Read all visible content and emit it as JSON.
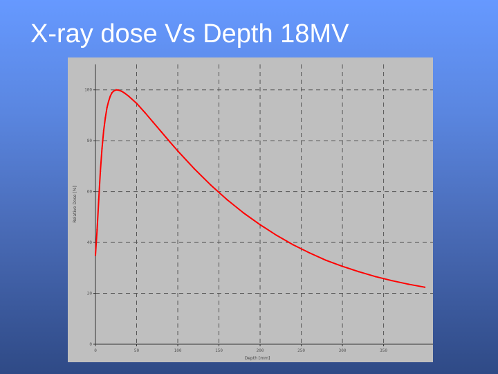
{
  "slide": {
    "title": "X-ray dose Vs Depth 18MV"
  },
  "colors": {
    "background_top": "#6699ff",
    "background_bottom": "#2f4a86",
    "plot_background": "#bfbfbf",
    "curve": "#ff0000",
    "grid": "#555555"
  },
  "chart_data": {
    "type": "line",
    "title": "",
    "xlabel": "Depth [mm]",
    "ylabel": "Relative Dose [%]",
    "xlim": [
      0,
      410
    ],
    "ylim": [
      0,
      110
    ],
    "xticks": [
      0,
      50,
      100,
      150,
      200,
      250,
      300,
      350
    ],
    "xtick_labels": [
      "0",
      "50",
      "100",
      "150",
      "200",
      "250",
      "300",
      "350"
    ],
    "yticks": [
      0,
      20,
      40,
      60,
      80,
      100
    ],
    "ytick_labels": [
      "0",
      "20",
      "40",
      "60",
      "80",
      "100"
    ],
    "grid": true,
    "grid_style": "dashed",
    "series": [
      {
        "color": "#ff0000",
        "x": [
          0,
          2,
          4,
          6,
          8,
          10,
          12,
          14,
          16,
          18,
          20,
          22,
          25,
          28,
          32,
          36,
          40,
          50,
          60,
          70,
          80,
          90,
          100,
          120,
          140,
          160,
          180,
          200,
          220,
          240,
          260,
          280,
          300,
          320,
          340,
          360,
          380,
          400
        ],
        "y": [
          35,
          45,
          57,
          68,
          77,
          84,
          89,
          93,
          95.5,
          97.5,
          98.8,
          99.5,
          100,
          99.9,
          99.4,
          98.6,
          97.6,
          94.7,
          91.1,
          87.3,
          83.5,
          79.7,
          76.0,
          69.0,
          62.6,
          56.8,
          51.6,
          47.0,
          42.8,
          39.1,
          35.9,
          33.0,
          30.6,
          28.5,
          26.6,
          25.0,
          23.6,
          22.4
        ]
      }
    ]
  }
}
